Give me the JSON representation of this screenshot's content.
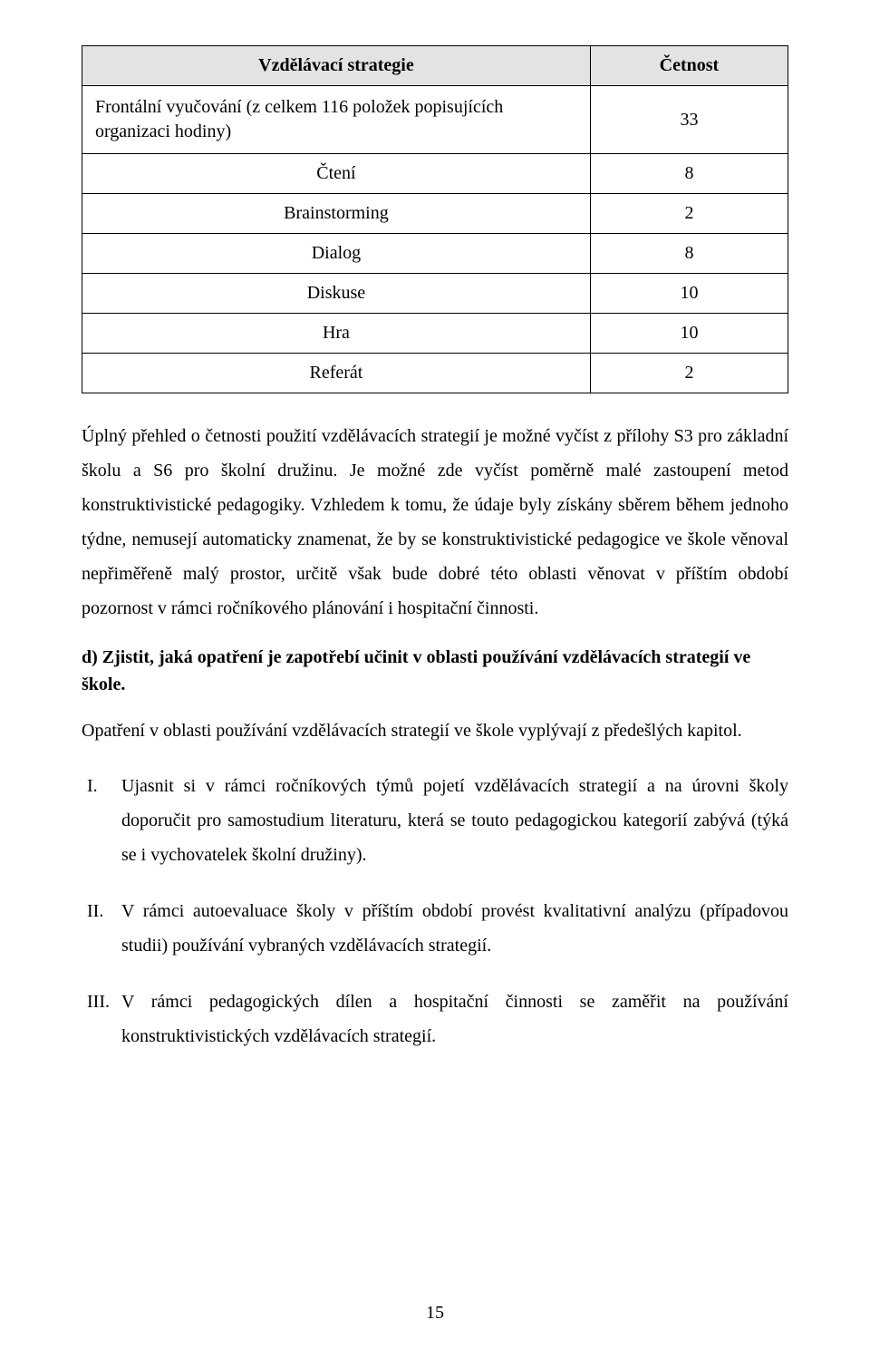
{
  "table": {
    "header_left": "Vzdělávací strategie",
    "header_right": "Četnost",
    "rows": [
      {
        "label": "Frontální vyučování (z celkem 116 položek popisujících organizaci hodiny)",
        "value": "33",
        "multi": true
      },
      {
        "label": "Čtení",
        "value": "8"
      },
      {
        "label": "Brainstorming",
        "value": "2"
      },
      {
        "label": "Dialog",
        "value": "8"
      },
      {
        "label": "Diskuse",
        "value": "10"
      },
      {
        "label": "Hra",
        "value": "10"
      },
      {
        "label": "Referát",
        "value": "2"
      }
    ]
  },
  "paragraphs": {
    "p1": "Úplný přehled o četnosti použití vzdělávacích strategií je možné vyčíst z přílohy S3 pro základní školu a S6 pro školní družinu. Je možné zde vyčíst poměrně malé zastoupení metod konstruktivistické pedagogiky. Vzhledem k tomu, že údaje byly získány sběrem během jednoho týdne, nemusejí automaticky znamenat, že by se konstruktivistické pedagogice ve škole věnoval nepřiměřeně malý prostor, určitě však bude dobré této oblasti věnovat v příštím období pozornost v rámci ročníkového plánování i hospitační činnosti.",
    "heading_d": "d) Zjistit, jaká opatření je zapotřebí učinit v oblasti používání vzdělávacích strategií ve škole.",
    "p2": "Opatření v oblasti používání vzdělávacích strategií ve škole vyplývají z předešlých kapitol."
  },
  "list": {
    "items": [
      {
        "num": "I.",
        "text": "Ujasnit si v rámci ročníkových týmů pojetí vzdělávacích strategií a na úrovni školy doporučit pro samostudium literaturu, která se touto pedagogickou kategorií zabývá (týká se i vychovatelek školní družiny)."
      },
      {
        "num": "II.",
        "text": "V rámci autoevaluace školy v příštím období provést kvalitativní analýzu (případovou studii) používání vybraných vzdělávacích strategií."
      },
      {
        "num": "III.",
        "text": "V rámci pedagogických dílen a hospitační činnosti se zaměřit na používání konstruktivistických vzdělávacích strategií."
      }
    ]
  },
  "page_number": "15"
}
